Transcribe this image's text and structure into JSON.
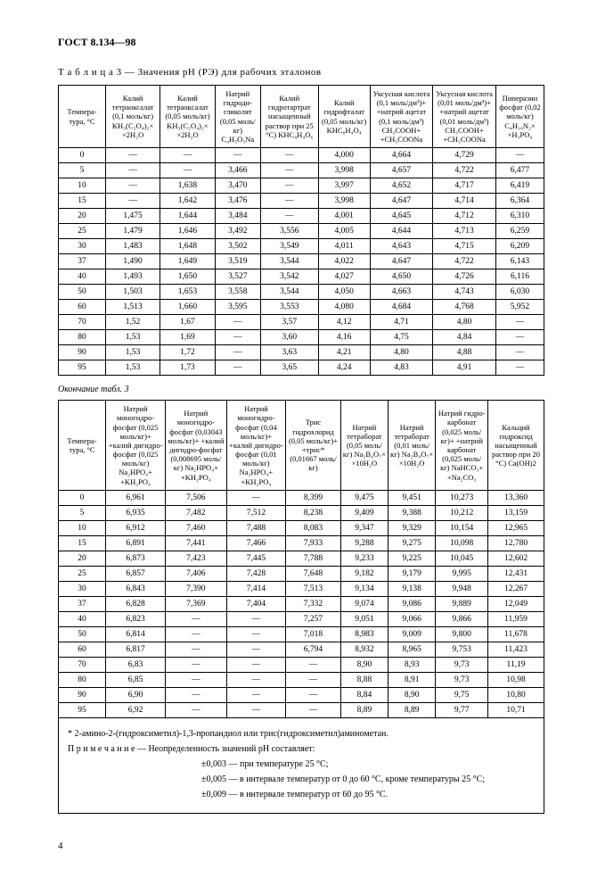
{
  "header": "ГОСТ 8.134—98",
  "caption1_label": "Т а б л и ц а  3",
  "caption1_rest": " — Значения pH (РЭ) для рабочих эталонов",
  "continuation": "Окончание табл. 3",
  "temp_label": "Темпера-\nтура,\n°C",
  "t1_headers": [
    "Калий тетраоксалат (0,1 моль/кг) KH₃(C₂O₄)₂× ×2H₂O",
    "Калий тетраоксалат (0,05 моль/кг) KH₃(C₂O₄)₂× ×2H₂O",
    "Натрий гидроди-гликолят (0,05 моль/кг) C₄H₅O₅Na",
    "Калий гидротартрат насыщенный раствор при 25 °C) KHC₄H₄O₆",
    "Калий гидрофталат (0,05 моль/кг) KHC₈H₄O₄",
    "Уксусная кислота (0,1 моль/дм³)+ +натрий ацетат (0,1 моль/дм³) CH₃COOH+ +CH₃COONa",
    "Уксусная кислота (0,01 моль/дм³)+ +натрий ацетат (0,01 моль/дм³) CH₃COOH+ +CH₃COONa",
    "Пиперазин фосфат (0,02 моль/кг) C₄H₁₀N₂× ×H₃PO₄"
  ],
  "t1_temps": [
    "0",
    "5",
    "10",
    "15",
    "20",
    "25",
    "30",
    "37",
    "40",
    "50",
    "60",
    "70",
    "80",
    "90",
    "95"
  ],
  "t1_data": [
    [
      "—",
      "—",
      "—",
      "—",
      "4,000",
      "4,664",
      "4,729",
      "—"
    ],
    [
      "—",
      "—",
      "3,466",
      "—",
      "3,998",
      "4,657",
      "4,722",
      "6,477"
    ],
    [
      "—",
      "1,638",
      "3,470",
      "—",
      "3,997",
      "4,652",
      "4,717",
      "6,419"
    ],
    [
      "—",
      "1,642",
      "3,476",
      "—",
      "3,998",
      "4,647",
      "4,714",
      "6,364"
    ],
    [
      "1,475",
      "1,644",
      "3,484",
      "—",
      "4,001",
      "4,645",
      "4,712",
      "6,310"
    ],
    [
      "1,479",
      "1,646",
      "3,492",
      "3,556",
      "4,005",
      "4,644",
      "4,713",
      "6,259"
    ],
    [
      "1,483",
      "1,648",
      "3,502",
      "3,549",
      "4,011",
      "4,643",
      "4,715",
      "6,209"
    ],
    [
      "1,490",
      "1,649",
      "3,519",
      "3,544",
      "4,022",
      "4,647",
      "4,722",
      "6,143"
    ],
    [
      "1,493",
      "1,650",
      "3,527",
      "3,542",
      "4,027",
      "4,650",
      "4,726",
      "6,116"
    ],
    [
      "1,503",
      "1,653",
      "3,558",
      "3,544",
      "4,050",
      "4,663",
      "4,743",
      "6,030"
    ],
    [
      "1,513",
      "1,660",
      "3,595",
      "3,553",
      "4,080",
      "4,684",
      "4,768",
      "5,952"
    ],
    [
      "1,52",
      "1,67",
      "—",
      "3,57",
      "4,12",
      "4,71",
      "4,80",
      "—"
    ],
    [
      "1,53",
      "1,69",
      "—",
      "3,60",
      "4,16",
      "4,75",
      "4,84",
      "—"
    ],
    [
      "1,53",
      "1,72",
      "—",
      "3,63",
      "4,21",
      "4,80",
      "4,88",
      "—"
    ],
    [
      "1,53",
      "1,73",
      "—",
      "3,65",
      "4,24",
      "4,83",
      "4,91",
      "—"
    ]
  ],
  "t2_headers": [
    "Натрий моногидро-фосфат (0,025 моль/кг)+ +калий дигидро-фосфат (0,025 моль/кг) Na₂HPO₄+ +KH₂PO₄",
    "Натрий моногидро-фосфат (0,03043 моль/кг)+ +калий дигидро-фосфат (0,008695 моль/кг) Na₂HPO₄+ +KH₂PO₄",
    "Натрий моногидро-фосфат (0,04 моль/кг)+ +калий дигидро-фосфат (0,01 моль/кг) Na₂HPO₄+ +KH₂PO₄",
    "Трис гидрохлорид (0,05 моль/кг)+ +трис* (0,01667 моль/кг)",
    "Натрий тетраборат (0,05 моль/кг) Na₂B₄O₇× ×10H₂O",
    "Натрий тетраборат (0,01 моль/кг) Na₂B₄O₇× ×10H₂O",
    "Натрий гидро-карбонат (0,025 моль/кг)+ +натрий карбонат (0,025 моль/кг) NaHCO₃+ +Na₂CO₃",
    "Кальций гидроксид насыщенный раствор при 20 °C) Ca(OH)2"
  ],
  "t2_temps": [
    "0",
    "5",
    "10",
    "15",
    "20",
    "25",
    "30",
    "37",
    "40",
    "50",
    "60",
    "70",
    "80",
    "90",
    "95"
  ],
  "t2_data": [
    [
      "6,961",
      "7,506",
      "—",
      "8,399",
      "9,475",
      "9,451",
      "10,273",
      "13,360"
    ],
    [
      "6,935",
      "7,482",
      "7,512",
      "8,238",
      "9,409",
      "9,388",
      "10,212",
      "13,159"
    ],
    [
      "6,912",
      "7,460",
      "7,488",
      "8,083",
      "9,347",
      "9,329",
      "10,154",
      "12,965"
    ],
    [
      "6,891",
      "7,441",
      "7,466",
      "7,933",
      "9,288",
      "9,275",
      "10,098",
      "12,780"
    ],
    [
      "6,873",
      "7,423",
      "7,445",
      "7,788",
      "9,233",
      "9,225",
      "10,045",
      "12,602"
    ],
    [
      "6,857",
      "7,406",
      "7,428",
      "7,648",
      "9,182",
      "9,179",
      "9,995",
      "12,431"
    ],
    [
      "6,843",
      "7,390",
      "7,414",
      "7,513",
      "9,134",
      "9,138",
      "9,948",
      "12,267"
    ],
    [
      "6,828",
      "7,369",
      "7,404",
      "7,332",
      "9,074",
      "9,086",
      "9,889",
      "12,049"
    ],
    [
      "6,823",
      "—",
      "—",
      "7,257",
      "9,051",
      "9,066",
      "9,866",
      "11,959"
    ],
    [
      "6,814",
      "—",
      "—",
      "7,018",
      "8,983",
      "9,009",
      "9,800",
      "11,678"
    ],
    [
      "6,817",
      "—",
      "—",
      "6,794",
      "8,932",
      "8,965",
      "9,753",
      "11,423"
    ],
    [
      "6,83",
      "—",
      "—",
      "—",
      "8,90",
      "8,93",
      "9,73",
      "11,19"
    ],
    [
      "6,85",
      "—",
      "—",
      "—",
      "8,88",
      "8,91",
      "9,73",
      "10,98"
    ],
    [
      "6,90",
      "—",
      "—",
      "—",
      "8,84",
      "8,90",
      "9,75",
      "10,80"
    ],
    [
      "6,92",
      "—",
      "—",
      "—",
      "8,89",
      "8,89",
      "9,77",
      "10,71"
    ]
  ],
  "footnote_star": "* 2-амино-2-(гидроксиметил)-1,3-пропандиол или трис(гидроксиметил)аминометан.",
  "note_label": "П р и м е ч а н и е",
  "note_intro": " — Неопределенность значений pH составляет:",
  "note_line1": "±0,003 — при температуре 25 °C;",
  "note_line2": "±0,005 — в интервале температур от 0 до 60 °C, кроме температуры 25 °C;",
  "note_line3": "±0,009 — в интервале температур от 60 до 95 °C.",
  "page_number": "4"
}
